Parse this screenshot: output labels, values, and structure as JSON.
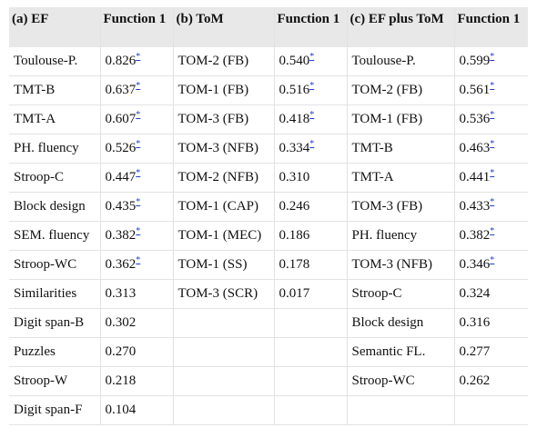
{
  "headers": [
    "(a) EF",
    "Function 1",
    "(b) ToM",
    "Function 1",
    "(c) EF plus ToM",
    "Function 1"
  ],
  "footnote_mark": "*",
  "rows": [
    [
      {
        "t": "Toulouse-P."
      },
      {
        "t": "0.826",
        "sig": true
      },
      {
        "t": "TOM-2 (FB)"
      },
      {
        "t": "0.540",
        "sig": true
      },
      {
        "t": "Toulouse-P."
      },
      {
        "t": "0.599",
        "sig": true
      }
    ],
    [
      {
        "t": "TMT-B"
      },
      {
        "t": "0.637",
        "sig": true
      },
      {
        "t": "TOM-1 (FB)"
      },
      {
        "t": "0.516",
        "sig": true
      },
      {
        "t": "TOM-2 (FB)"
      },
      {
        "t": "0.561",
        "sig": true
      }
    ],
    [
      {
        "t": "TMT-A"
      },
      {
        "t": "0.607",
        "sig": true
      },
      {
        "t": "TOM-3 (FB)"
      },
      {
        "t": "0.418",
        "sig": true
      },
      {
        "t": "TOM-1 (FB)"
      },
      {
        "t": "0.536",
        "sig": true
      }
    ],
    [
      {
        "t": "PH. fluency"
      },
      {
        "t": "0.526",
        "sig": true
      },
      {
        "t": "TOM-3 (NFB)"
      },
      {
        "t": "0.334",
        "sig": true
      },
      {
        "t": "TMT-B"
      },
      {
        "t": "0.463",
        "sig": true
      }
    ],
    [
      {
        "t": "Stroop-C"
      },
      {
        "t": "0.447",
        "sig": true
      },
      {
        "t": "TOM-2 (NFB)"
      },
      {
        "t": "0.310"
      },
      {
        "t": "TMT-A"
      },
      {
        "t": "0.441",
        "sig": true
      }
    ],
    [
      {
        "t": "Block design"
      },
      {
        "t": "0.435",
        "sig": true
      },
      {
        "t": "TOM-1 (CAP)"
      },
      {
        "t": "0.246"
      },
      {
        "t": "TOM-3 (FB)"
      },
      {
        "t": "0.433",
        "sig": true
      }
    ],
    [
      {
        "t": "SEM. fluency"
      },
      {
        "t": "0.382",
        "sig": true
      },
      {
        "t": "TOM-1 (MEC)"
      },
      {
        "t": "0.186"
      },
      {
        "t": "PH. fluency"
      },
      {
        "t": "0.382",
        "sig": true
      }
    ],
    [
      {
        "t": "Stroop-WC"
      },
      {
        "t": "0.362",
        "sig": true
      },
      {
        "t": "TOM-1 (SS)"
      },
      {
        "t": "0.178"
      },
      {
        "t": "TOM-3 (NFB)"
      },
      {
        "t": "0.346",
        "sig": true
      }
    ],
    [
      {
        "t": "Similarities"
      },
      {
        "t": "0.313"
      },
      {
        "t": "TOM-3 (SCR)"
      },
      {
        "t": "0.017"
      },
      {
        "t": "Stroop-C"
      },
      {
        "t": "0.324"
      }
    ],
    [
      {
        "t": "Digit span-B"
      },
      {
        "t": "0.302"
      },
      {
        "t": ""
      },
      {
        "t": ""
      },
      {
        "t": "Block design"
      },
      {
        "t": "0.316"
      }
    ],
    [
      {
        "t": "Puzzles"
      },
      {
        "t": "0.270"
      },
      {
        "t": ""
      },
      {
        "t": ""
      },
      {
        "t": "Semantic FL."
      },
      {
        "t": "0.277"
      }
    ],
    [
      {
        "t": "Stroop-W"
      },
      {
        "t": "0.218"
      },
      {
        "t": ""
      },
      {
        "t": ""
      },
      {
        "t": "Stroop-WC"
      },
      {
        "t": "0.262"
      }
    ],
    [
      {
        "t": "Digit span-F"
      },
      {
        "t": "0.104"
      },
      {
        "t": ""
      },
      {
        "t": ""
      },
      {
        "t": ""
      },
      {
        "t": ""
      }
    ]
  ]
}
